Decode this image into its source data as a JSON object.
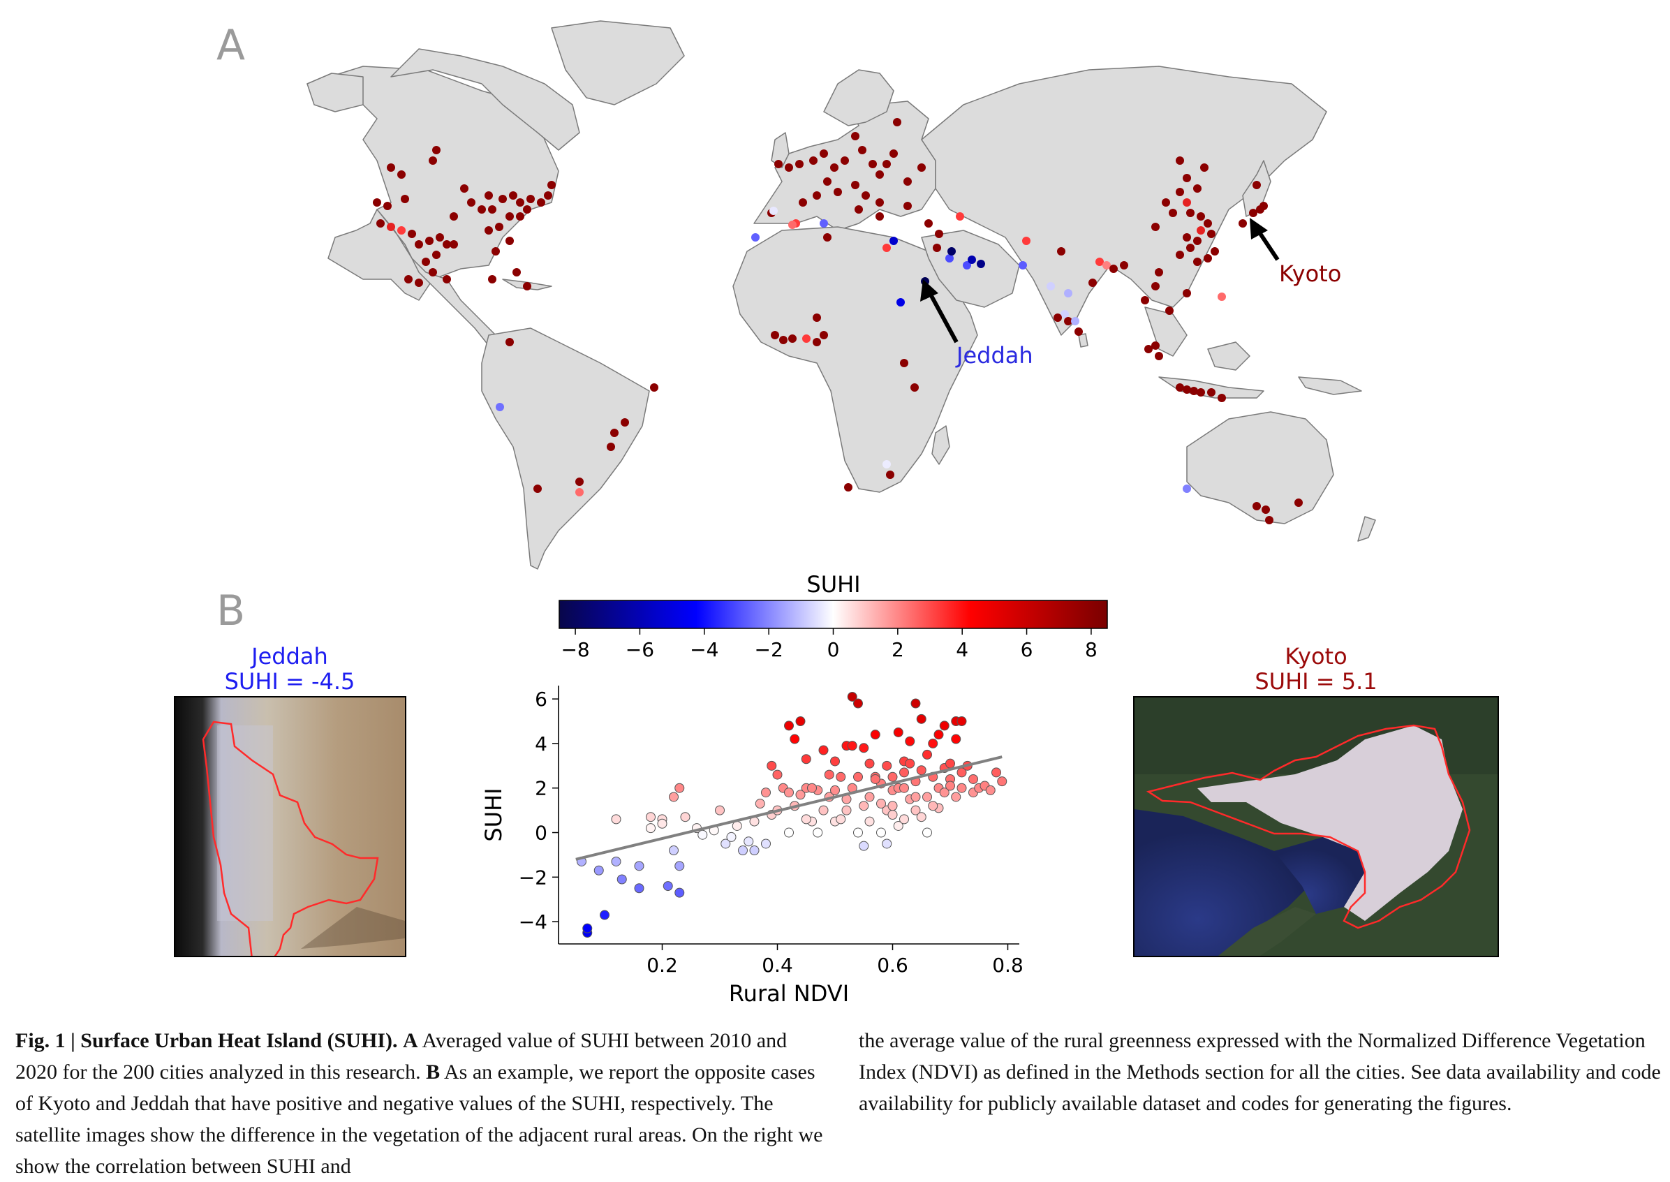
{
  "panel_a_label": "A",
  "panel_b_label": "B",
  "map": {
    "annotations": [
      {
        "label": "Jeddah",
        "color": "#2a2ae0"
      },
      {
        "label": "Kyoto",
        "color": "#8b0000"
      }
    ]
  },
  "colorbar": {
    "title": "SUHI",
    "ticks": [
      "−8",
      "−6",
      "−4",
      "−2",
      "0",
      "2",
      "4",
      "6",
      "8"
    ],
    "range": [
      -8.5,
      8.5
    ],
    "colormap": [
      "#08064a",
      "#0000ff",
      "#ffffff",
      "#ff0000",
      "#7a0000"
    ]
  },
  "jeddah_panel": {
    "title_line1": "Jeddah",
    "title_line2": "SUHI = -4.5",
    "color": "#1d1df0"
  },
  "kyoto_panel": {
    "title_line1": "Kyoto",
    "title_line2": "SUHI = 5.1",
    "color": "#9b0a0a"
  },
  "chart_data": {
    "type": "scatter",
    "xlabel": "Rural NDVI",
    "ylabel": "SUHI",
    "xlim": [
      0.02,
      0.82
    ],
    "ylim": [
      -5.0,
      6.6
    ],
    "xticks": [
      0.2,
      0.4,
      0.6,
      0.8
    ],
    "xtick_labels": [
      "0.2",
      "0.4",
      "0.6",
      "0.8"
    ],
    "yticks": [
      -4,
      -2,
      0,
      2,
      4,
      6
    ],
    "ytick_labels": [
      "−4",
      "−2",
      "0",
      "2",
      "4",
      "6"
    ],
    "regression_line": {
      "x": [
        0.05,
        0.79
      ],
      "y": [
        -1.2,
        3.4
      ],
      "color": "#808080"
    },
    "points": [
      [
        0.07,
        -4.5
      ],
      [
        0.07,
        -4.3
      ],
      [
        0.1,
        -3.7
      ],
      [
        0.06,
        -1.3
      ],
      [
        0.09,
        -1.7
      ],
      [
        0.12,
        -1.3
      ],
      [
        0.13,
        -2.1
      ],
      [
        0.16,
        -2.5
      ],
      [
        0.16,
        -1.5
      ],
      [
        0.21,
        -2.4
      ],
      [
        0.23,
        -2.7
      ],
      [
        0.22,
        -0.8
      ],
      [
        0.23,
        -1.5
      ],
      [
        0.12,
        0.6
      ],
      [
        0.18,
        0.7
      ],
      [
        0.18,
        0.2
      ],
      [
        0.2,
        0.6
      ],
      [
        0.2,
        0.4
      ],
      [
        0.22,
        1.6
      ],
      [
        0.24,
        0.7
      ],
      [
        0.23,
        2.0
      ],
      [
        0.26,
        0.2
      ],
      [
        0.27,
        -0.1
      ],
      [
        0.29,
        0.1
      ],
      [
        0.3,
        1.0
      ],
      [
        0.31,
        -0.5
      ],
      [
        0.32,
        -0.2
      ],
      [
        0.33,
        0.3
      ],
      [
        0.34,
        -0.8
      ],
      [
        0.35,
        -0.4
      ],
      [
        0.36,
        0.5
      ],
      [
        0.36,
        -0.8
      ],
      [
        0.37,
        1.3
      ],
      [
        0.38,
        -0.5
      ],
      [
        0.38,
        1.8
      ],
      [
        0.39,
        0.8
      ],
      [
        0.39,
        3.0
      ],
      [
        0.4,
        1.0
      ],
      [
        0.41,
        2.0
      ],
      [
        0.4,
        2.6
      ],
      [
        0.42,
        1.8
      ],
      [
        0.42,
        0.0
      ],
      [
        0.42,
        4.8
      ],
      [
        0.43,
        4.2
      ],
      [
        0.44,
        1.7
      ],
      [
        0.45,
        2.0
      ],
      [
        0.44,
        5.0
      ],
      [
        0.45,
        3.3
      ],
      [
        0.46,
        0.5
      ],
      [
        0.47,
        1.9
      ],
      [
        0.46,
        2.0
      ],
      [
        0.47,
        0.0
      ],
      [
        0.48,
        3.7
      ],
      [
        0.49,
        1.6
      ],
      [
        0.49,
        2.6
      ],
      [
        0.5,
        0.5
      ],
      [
        0.5,
        1.9
      ],
      [
        0.5,
        3.2
      ],
      [
        0.51,
        0.6
      ],
      [
        0.51,
        2.5
      ],
      [
        0.52,
        3.9
      ],
      [
        0.52,
        1.5
      ],
      [
        0.53,
        3.9
      ],
      [
        0.53,
        2.0
      ],
      [
        0.54,
        0.0
      ],
      [
        0.54,
        2.5
      ],
      [
        0.55,
        1.2
      ],
      [
        0.55,
        3.8
      ],
      [
        0.55,
        -0.6
      ],
      [
        0.53,
        6.1
      ],
      [
        0.54,
        5.8
      ],
      [
        0.56,
        0.5
      ],
      [
        0.56,
        1.6
      ],
      [
        0.56,
        3.1
      ],
      [
        0.57,
        2.5
      ],
      [
        0.57,
        4.4
      ],
      [
        0.58,
        2.2
      ],
      [
        0.58,
        0.0
      ],
      [
        0.59,
        3.0
      ],
      [
        0.59,
        1.0
      ],
      [
        0.59,
        -0.5
      ],
      [
        0.6,
        1.9
      ],
      [
        0.6,
        0.8
      ],
      [
        0.6,
        2.5
      ],
      [
        0.61,
        2.0
      ],
      [
        0.61,
        0.3
      ],
      [
        0.61,
        4.5
      ],
      [
        0.62,
        3.2
      ],
      [
        0.62,
        2.7
      ],
      [
        0.62,
        0.6
      ],
      [
        0.63,
        1.5
      ],
      [
        0.63,
        3.1
      ],
      [
        0.63,
        4.1
      ],
      [
        0.64,
        5.8
      ],
      [
        0.64,
        1.0
      ],
      [
        0.64,
        2.3
      ],
      [
        0.65,
        0.7
      ],
      [
        0.65,
        2.8
      ],
      [
        0.65,
        5.1
      ],
      [
        0.66,
        3.5
      ],
      [
        0.66,
        1.6
      ],
      [
        0.67,
        4.0
      ],
      [
        0.67,
        2.5
      ],
      [
        0.68,
        2.0
      ],
      [
        0.68,
        4.4
      ],
      [
        0.68,
        1.1
      ],
      [
        0.69,
        2.9
      ],
      [
        0.69,
        4.8
      ],
      [
        0.69,
        1.8
      ],
      [
        0.7,
        3.1
      ],
      [
        0.7,
        2.4
      ],
      [
        0.71,
        5.0
      ],
      [
        0.71,
        1.6
      ],
      [
        0.71,
        4.2
      ],
      [
        0.72,
        2.7
      ],
      [
        0.72,
        2.0
      ],
      [
        0.72,
        5.0
      ],
      [
        0.73,
        3.0
      ],
      [
        0.74,
        1.8
      ],
      [
        0.74,
        2.4
      ],
      [
        0.75,
        2.0
      ],
      [
        0.76,
        2.1
      ],
      [
        0.77,
        1.9
      ],
      [
        0.78,
        2.7
      ],
      [
        0.79,
        2.3
      ],
      [
        0.57,
        2.4
      ],
      [
        0.52,
        1.0
      ],
      [
        0.48,
        1.0
      ],
      [
        0.45,
        0.6
      ],
      [
        0.43,
        1.2
      ],
      [
        0.58,
        1.3
      ],
      [
        0.66,
        0.0
      ],
      [
        0.7,
        2.1
      ],
      [
        0.62,
        2.0
      ],
      [
        0.6,
        1.2
      ],
      [
        0.64,
        1.6
      ],
      [
        0.67,
        1.2
      ]
    ]
  },
  "caption": {
    "left_bold1": "Fig. 1 | Surface Urban Heat Island (SUHI).",
    "left_bold_a": "A",
    "left_text1": "Averaged value of SUHI between 2010 and 2020 for the 200 cities analyzed in this research.",
    "left_bold_b": "B",
    "left_text2": "As an example, we report the opposite cases of Kyoto and Jeddah that have positive and negative values of the SUHI, respectively. The satellite images show the difference in the vegetation of the adjacent rural areas. On the right we show the correlation between SUHI and",
    "right_text": "the average value of the rural greenness expressed with the Normalized Difference Vegetation Index (NDVI) as defined in the Methods section for all the cities. See data availability and code availability for publicly available dataset and codes for generating the figures."
  }
}
